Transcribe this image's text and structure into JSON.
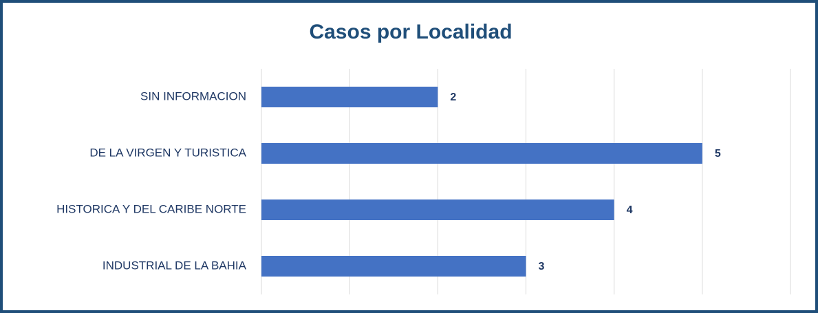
{
  "chart_data": {
    "type": "bar",
    "orientation": "horizontal",
    "title": "Casos por Localidad",
    "categories": [
      "SIN INFORMACION",
      "DE LA VIRGEN Y TURISTICA",
      "HISTORICA Y DEL CARIBE NORTE",
      "INDUSTRIAL DE LA BAHIA"
    ],
    "values": [
      2,
      5,
      4,
      3
    ],
    "color": "#4472c4",
    "xlim": [
      0,
      6
    ],
    "xticks": [
      0,
      1,
      2,
      3,
      4,
      5,
      6
    ],
    "grid": true
  }
}
